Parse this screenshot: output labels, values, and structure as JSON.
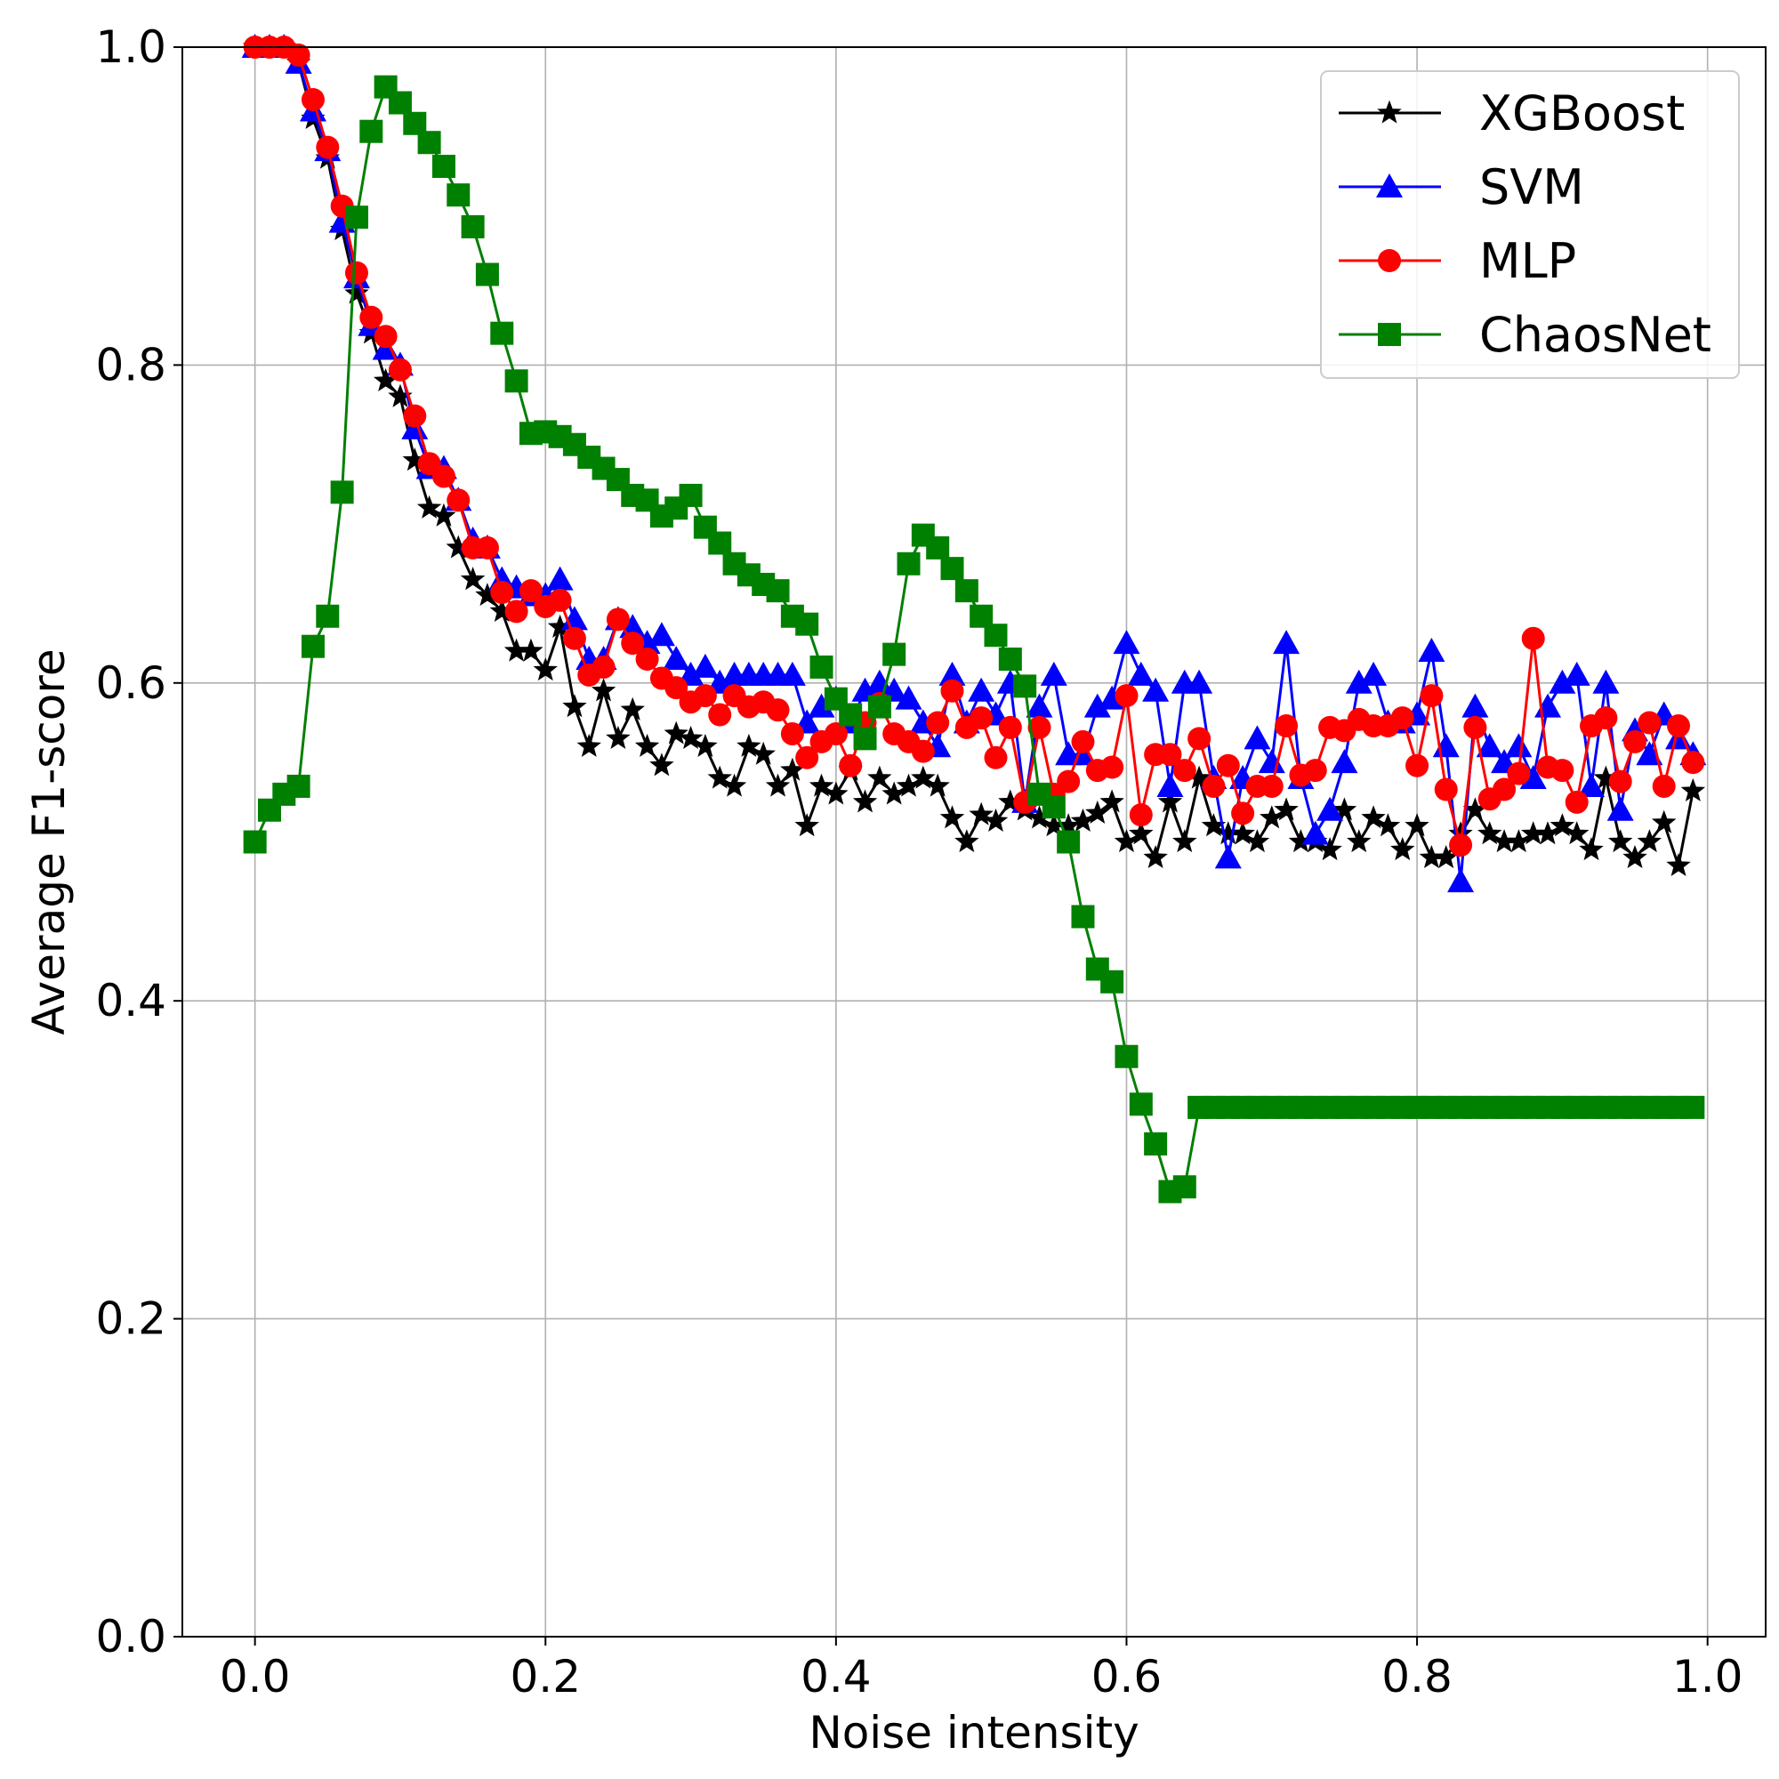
{
  "chart_data": {
    "type": "line",
    "title": "",
    "xlabel": "Noise intensity",
    "ylabel": "Average F1-score",
    "xlim": [
      -0.05,
      1.04
    ],
    "ylim": [
      0.0,
      1.0
    ],
    "xticks": [
      "0.0",
      "0.2",
      "0.4",
      "0.6",
      "0.8",
      "1.0"
    ],
    "yticks": [
      "0.0",
      "0.2",
      "0.4",
      "0.6",
      "0.8",
      "1.0"
    ],
    "grid": true,
    "legend_position": "top-right",
    "x": [
      0.0,
      0.01,
      0.02,
      0.03,
      0.04,
      0.05,
      0.06,
      0.07,
      0.08,
      0.09,
      0.1,
      0.11,
      0.12,
      0.13,
      0.14,
      0.15,
      0.16,
      0.17,
      0.18,
      0.19,
      0.2,
      0.21,
      0.22,
      0.23,
      0.24,
      0.25,
      0.26,
      0.27,
      0.28,
      0.29,
      0.3,
      0.31,
      0.32,
      0.33,
      0.34,
      0.35,
      0.36,
      0.37,
      0.38,
      0.39,
      0.4,
      0.41,
      0.42,
      0.43,
      0.44,
      0.45,
      0.46,
      0.47,
      0.48,
      0.49,
      0.5,
      0.51,
      0.52,
      0.53,
      0.54,
      0.55,
      0.56,
      0.57,
      0.58,
      0.59,
      0.6,
      0.61,
      0.62,
      0.63,
      0.64,
      0.65,
      0.66,
      0.67,
      0.68,
      0.69,
      0.7,
      0.71,
      0.72,
      0.73,
      0.74,
      0.75,
      0.76,
      0.77,
      0.78,
      0.79,
      0.8,
      0.81,
      0.82,
      0.83,
      0.84,
      0.85,
      0.86,
      0.87,
      0.88,
      0.89,
      0.9,
      0.91,
      0.92,
      0.93,
      0.94,
      0.95,
      0.96,
      0.97,
      0.98,
      0.99
    ],
    "series": [
      {
        "name": "XGBoost",
        "color": "#000000",
        "marker": "star",
        "values": [
          1.0,
          1.0,
          1.0,
          0.99,
          0.955,
          0.93,
          0.885,
          0.845,
          0.82,
          0.79,
          0.78,
          0.74,
          0.71,
          0.705,
          0.685,
          0.665,
          0.655,
          0.645,
          0.62,
          0.62,
          0.608,
          0.635,
          0.585,
          0.56,
          0.595,
          0.565,
          0.583,
          0.56,
          0.548,
          0.568,
          0.565,
          0.56,
          0.54,
          0.535,
          0.56,
          0.555,
          0.535,
          0.545,
          0.51,
          0.535,
          0.53,
          0.545,
          0.525,
          0.54,
          0.53,
          0.535,
          0.54,
          0.535,
          0.515,
          0.5,
          0.517,
          0.513,
          0.525,
          0.52,
          0.515,
          0.51,
          0.51,
          0.513,
          0.518,
          0.525,
          0.5,
          0.505,
          0.49,
          0.525,
          0.5,
          0.54,
          0.51,
          0.505,
          0.505,
          0.5,
          0.515,
          0.52,
          0.5,
          0.5,
          0.495,
          0.52,
          0.5,
          0.515,
          0.51,
          0.495,
          0.51,
          0.49,
          0.49,
          0.505,
          0.52,
          0.505,
          0.5,
          0.5,
          0.505,
          0.505,
          0.51,
          0.505,
          0.495,
          0.54,
          0.5,
          0.49,
          0.5,
          0.512,
          0.485,
          0.532
        ]
      },
      {
        "name": "SVM",
        "color": "#0000ff",
        "marker": "triangle",
        "values": [
          1.0,
          1.0,
          1.0,
          0.99,
          0.96,
          0.935,
          0.89,
          0.855,
          0.825,
          0.81,
          0.8,
          0.76,
          0.735,
          0.735,
          0.715,
          0.69,
          0.685,
          0.665,
          0.66,
          0.655,
          0.655,
          0.665,
          0.64,
          0.615,
          0.615,
          0.64,
          0.635,
          0.625,
          0.63,
          0.615,
          0.605,
          0.61,
          0.6,
          0.605,
          0.605,
          0.605,
          0.605,
          0.605,
          0.575,
          0.585,
          0.59,
          0.575,
          0.595,
          0.6,
          0.595,
          0.59,
          0.575,
          0.56,
          0.605,
          0.575,
          0.595,
          0.58,
          0.6,
          0.525,
          0.585,
          0.605,
          0.555,
          0.555,
          0.585,
          0.59,
          0.625,
          0.605,
          0.595,
          0.535,
          0.6,
          0.6,
          0.54,
          0.49,
          0.54,
          0.565,
          0.55,
          0.625,
          0.54,
          0.505,
          0.52,
          0.55,
          0.6,
          0.605,
          0.575,
          0.575,
          0.58,
          0.62,
          0.56,
          0.475,
          0.585,
          0.56,
          0.55,
          0.56,
          0.54,
          0.585,
          0.6,
          0.605,
          0.535,
          0.6,
          0.52,
          0.57,
          0.555,
          0.58,
          0.565,
          0.555
        ]
      },
      {
        "name": "MLP",
        "color": "#ff0000",
        "marker": "circle",
        "values": [
          1.0,
          1.0,
          1.0,
          0.995,
          0.967,
          0.937,
          0.9,
          0.858,
          0.83,
          0.818,
          0.797,
          0.768,
          0.738,
          0.73,
          0.715,
          0.685,
          0.685,
          0.657,
          0.645,
          0.658,
          0.648,
          0.652,
          0.628,
          0.605,
          0.61,
          0.64,
          0.625,
          0.615,
          0.603,
          0.597,
          0.588,
          0.592,
          0.58,
          0.592,
          0.585,
          0.588,
          0.583,
          0.568,
          0.553,
          0.563,
          0.568,
          0.548,
          0.575,
          0.587,
          0.568,
          0.563,
          0.557,
          0.575,
          0.595,
          0.572,
          0.578,
          0.553,
          0.572,
          0.525,
          0.572,
          0.53,
          0.538,
          0.563,
          0.545,
          0.547,
          0.592,
          0.517,
          0.555,
          0.555,
          0.545,
          0.565,
          0.535,
          0.548,
          0.518,
          0.535,
          0.535,
          0.573,
          0.542,
          0.545,
          0.572,
          0.57,
          0.577,
          0.573,
          0.573,
          0.578,
          0.548,
          0.592,
          0.533,
          0.498,
          0.572,
          0.527,
          0.533,
          0.543,
          0.628,
          0.547,
          0.545,
          0.525,
          0.573,
          0.578,
          0.538,
          0.563,
          0.575,
          0.535,
          0.573,
          0.55
        ]
      },
      {
        "name": "ChaosNet",
        "color": "#008000",
        "marker": "square",
        "values": [
          0.5,
          0.52,
          0.53,
          0.535,
          0.623,
          0.642,
          0.72,
          0.893,
          0.947,
          0.975,
          0.965,
          0.952,
          0.94,
          0.925,
          0.907,
          0.887,
          0.857,
          0.82,
          0.79,
          0.757,
          0.758,
          0.755,
          0.75,
          0.742,
          0.735,
          0.728,
          0.718,
          0.715,
          0.705,
          0.71,
          0.718,
          0.698,
          0.688,
          0.675,
          0.668,
          0.662,
          0.658,
          0.642,
          0.637,
          0.61,
          0.59,
          0.58,
          0.565,
          0.585,
          0.618,
          0.675,
          0.693,
          0.685,
          0.672,
          0.658,
          0.642,
          0.63,
          0.615,
          0.598,
          0.53,
          0.522,
          0.5,
          0.453,
          0.42,
          0.412,
          0.365,
          0.335,
          0.31,
          0.28,
          0.283,
          0.333,
          0.333,
          0.333,
          0.333,
          0.333,
          0.333,
          0.333,
          0.333,
          0.333,
          0.333,
          0.333,
          0.333,
          0.333,
          0.333,
          0.333,
          0.333,
          0.333,
          0.333,
          0.333,
          0.333,
          0.333,
          0.333,
          0.333,
          0.333,
          0.333,
          0.333,
          0.333,
          0.333,
          0.333,
          0.333,
          0.333,
          0.333,
          0.333,
          0.333,
          0.333
        ]
      }
    ]
  }
}
